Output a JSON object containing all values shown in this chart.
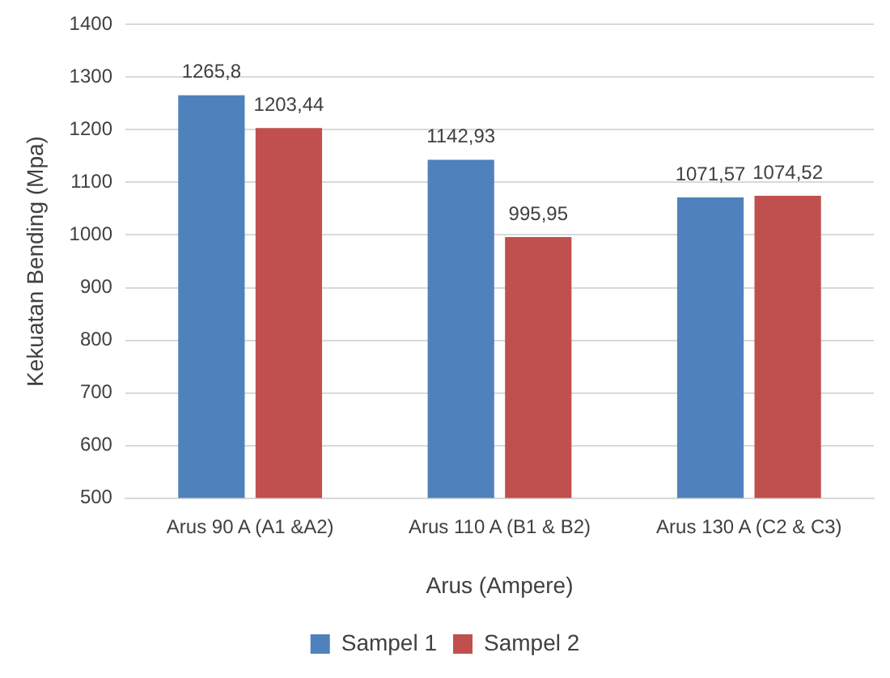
{
  "chart_data": {
    "type": "bar",
    "xlabel": "Arus (Ampere)",
    "ylabel": "Kekuatan Bending (Mpa)",
    "categories": [
      "Arus 90 A (A1 &A2)",
      "Arus 110 A (B1 & B2)",
      "Arus 130 A (C2 & C3)"
    ],
    "series": [
      {
        "name": "Sampel 1",
        "color": "#4f81bd",
        "values": [
          1265.8,
          1142.93,
          1071.57
        ],
        "value_labels": [
          "1265,8",
          "1142,93",
          "1071,57"
        ]
      },
      {
        "name": "Sampel 2",
        "color": "#c0504d",
        "values": [
          1203.44,
          995.95,
          1074.52
        ],
        "value_labels": [
          "1203,44",
          "995,95",
          "1074,52"
        ]
      }
    ],
    "ylim": [
      500,
      1400
    ],
    "yticks": [
      500,
      600,
      700,
      800,
      900,
      1000,
      1100,
      1200,
      1300,
      1400
    ],
    "grid": "y",
    "legend": "bottom"
  }
}
